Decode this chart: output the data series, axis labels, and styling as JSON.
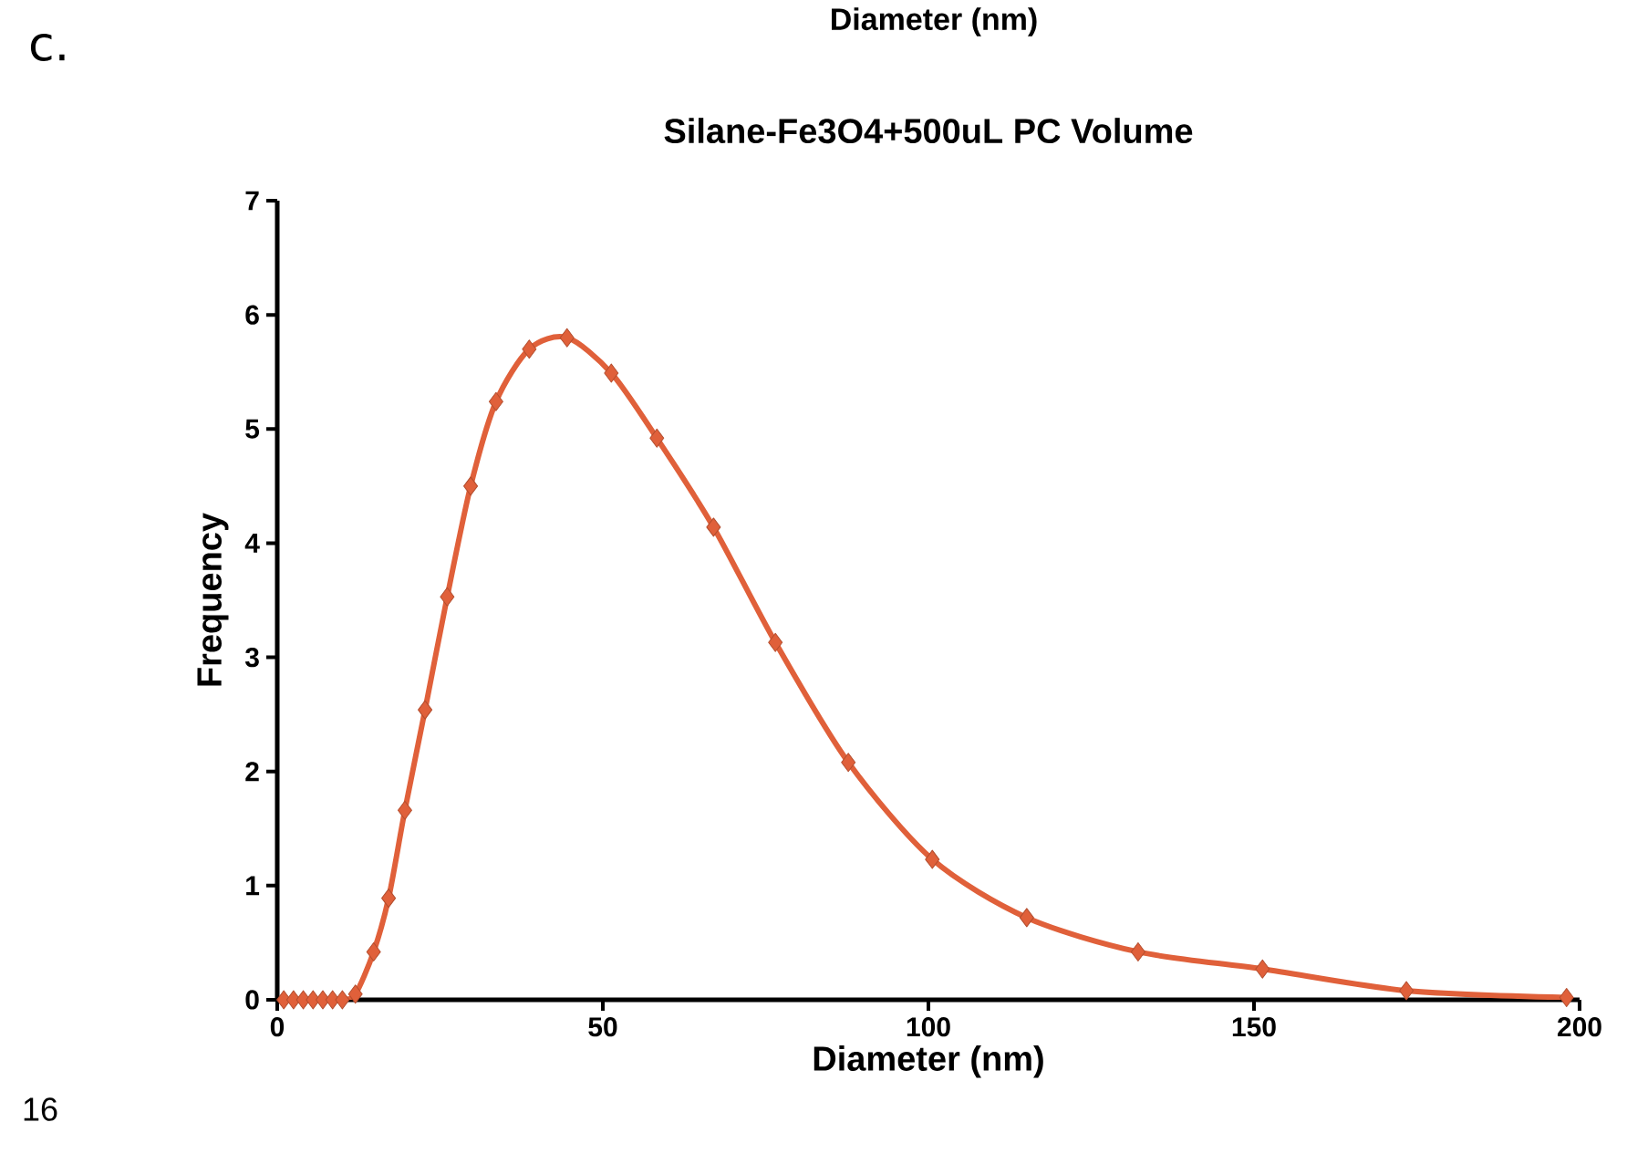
{
  "chart_data": {
    "type": "line",
    "title": "Silane-Fe3O4+500uL PC Volume",
    "xlabel": "Diameter (nm)",
    "ylabel": "Frequency",
    "x": [
      1,
      2.5,
      4,
      5.5,
      7,
      8.5,
      10,
      12,
      14.8,
      17.1,
      19.6,
      22.7,
      26.1,
      29.7,
      33.6,
      38.7,
      44.5,
      51.3,
      58.3,
      67,
      76.5,
      87.7,
      100.6,
      115.1,
      132.2,
      151.3,
      173.4,
      198
    ],
    "series": [
      {
        "color": "#e0603a",
        "values": [
          0,
          0,
          0,
          0,
          0,
          0,
          0,
          0.05,
          0.42,
          0.89,
          1.66,
          2.54,
          3.53,
          4.5,
          5.24,
          5.7,
          5.8,
          5.49,
          4.92,
          4.14,
          3.13,
          2.08,
          1.23,
          0.72,
          0.42,
          0.27,
          0.08,
          0.02
        ]
      }
    ],
    "xlim": [
      0,
      200
    ],
    "ylim": [
      0,
      7
    ],
    "xticks": [
      0,
      50,
      100,
      150,
      200
    ],
    "yticks": [
      0,
      1,
      2,
      3,
      4,
      5,
      6,
      7
    ],
    "marker": "diamond",
    "line_style": "solid",
    "annotations": [
      "c.",
      "Diameter (nm)",
      "16"
    ]
  }
}
